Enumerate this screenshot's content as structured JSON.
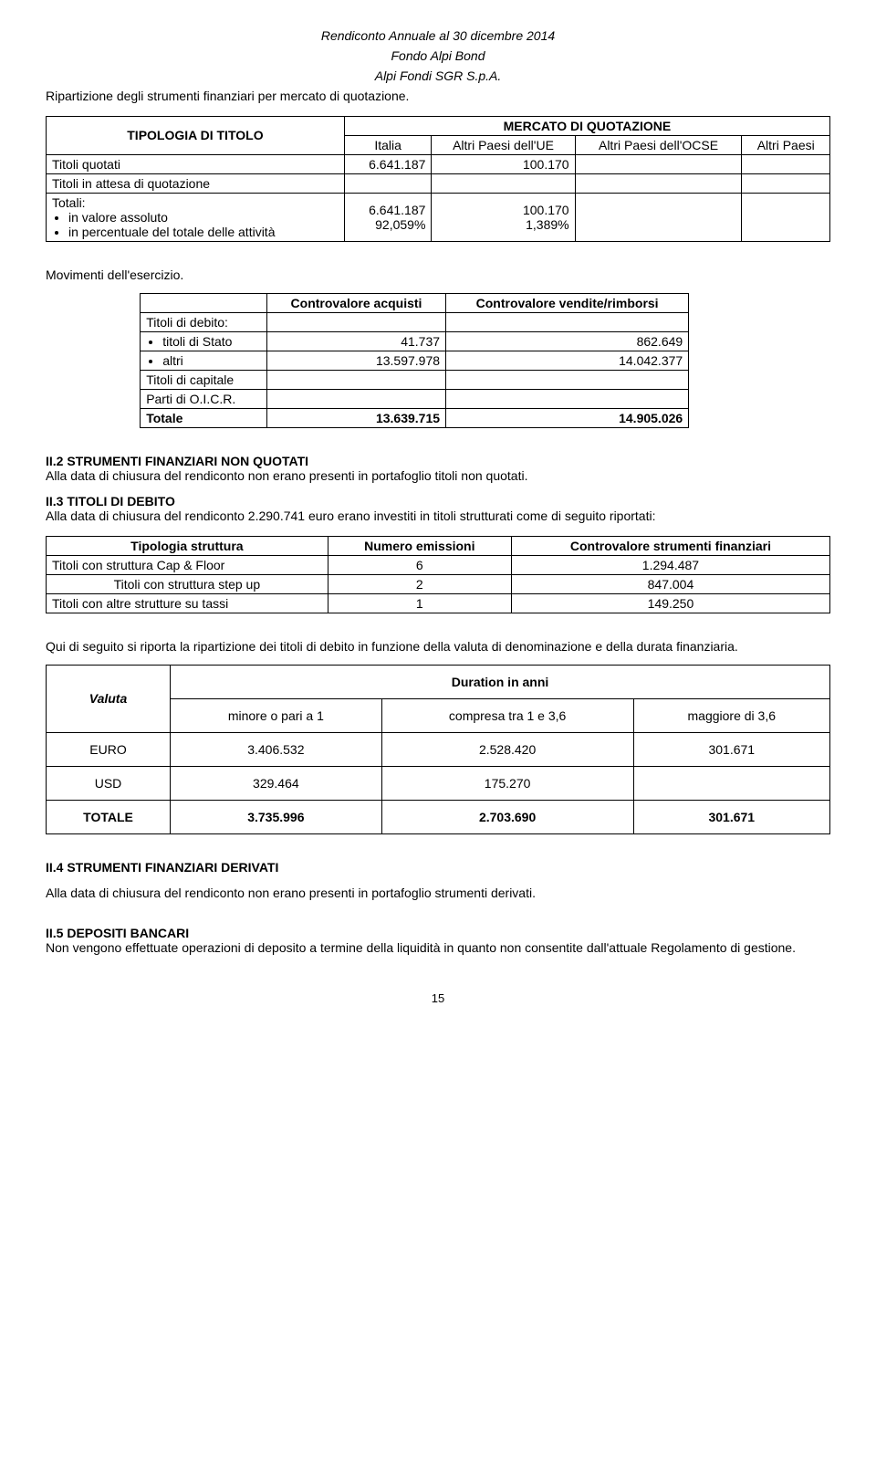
{
  "header": {
    "line1": "Rendiconto Annuale al 30 dicembre 2014",
    "line2": "Fondo Alpi Bond",
    "line3": "Alpi Fondi SGR S.p.A."
  },
  "intro": "Ripartizione degli strumenti finanziari per mercato di quotazione.",
  "tbl_mercato": {
    "title_col": "TIPOLOGIA DI TITOLO",
    "title_span": "MERCATO DI QUOTAZIONE",
    "cols": [
      "Italia",
      "Altri Paesi dell'UE",
      "Altri Paesi dell'OCSE",
      "Altri Paesi"
    ],
    "row_quotati": {
      "label": "Titoli quotati",
      "v": [
        "6.641.187",
        "100.170",
        "",
        ""
      ]
    },
    "row_attesa": {
      "label": "Titoli in attesa di quotazione",
      "v": [
        "",
        "",
        "",
        ""
      ]
    },
    "row_totali_label": "Totali:",
    "row_totali_bullets": [
      "in valore assoluto",
      "in percentuale del totale delle attività"
    ],
    "row_totali_v1": [
      "6.641.187",
      "100.170",
      "",
      ""
    ],
    "row_totali_v2": [
      "92,059%",
      "1,389%",
      "",
      ""
    ]
  },
  "movimenti_label": "Movimenti dell'esercizio.",
  "tbl_movimenti": {
    "col_acq": "Controvalore acquisti",
    "col_vend": "Controvalore vendite/rimborsi",
    "debito_label": "Titoli di debito:",
    "stato": {
      "label": "titoli di Stato",
      "acq": "41.737",
      "vend": "862.649"
    },
    "altri": {
      "label": "altri",
      "acq": "13.597.978",
      "vend": "14.042.377"
    },
    "capitale": "Titoli di capitale",
    "oicr": "Parti di O.I.C.R.",
    "totale": {
      "label": "Totale",
      "acq": "13.639.715",
      "vend": "14.905.026"
    }
  },
  "sec2": {
    "title": "II.2 STRUMENTI FINANZIARI NON QUOTATI",
    "text": "Alla data di chiusura del rendiconto non erano presenti in portafoglio titoli non quotati."
  },
  "sec3": {
    "title": "II.3 TITOLI DI DEBITO",
    "text": "Alla data di chiusura del rendiconto 2.290.741 euro erano investiti in titoli strutturati come di seguito riportati:"
  },
  "tbl_tipologia": {
    "cols": [
      "Tipologia struttura",
      "Numero emissioni",
      "Controvalore strumenti finanziari"
    ],
    "rows": [
      [
        "Titoli con struttura Cap & Floor",
        "6",
        "1.294.487"
      ],
      [
        "Titoli con struttura step up",
        "2",
        "847.004"
      ],
      [
        "Titoli con altre strutture su tassi",
        "1",
        "149.250"
      ]
    ]
  },
  "duration_intro": "Qui di seguito si riporta la ripartizione dei titoli di debito in funzione della valuta di denominazione e della durata finanziaria.",
  "tbl_duration": {
    "valuta_label": "Valuta",
    "duration_label": "Duration in anni",
    "cols": [
      "minore o pari a 1",
      "compresa tra 1 e 3,6",
      "maggiore di 3,6"
    ],
    "rows": [
      [
        "EURO",
        "3.406.532",
        "2.528.420",
        "301.671"
      ],
      [
        "USD",
        "329.464",
        "175.270",
        ""
      ]
    ],
    "totale": [
      "TOTALE",
      "3.735.996",
      "2.703.690",
      "301.671"
    ]
  },
  "sec4": {
    "title": "II.4 STRUMENTI FINANZIARI DERIVATI",
    "text": "Alla data di chiusura del rendiconto non erano presenti in portafoglio strumenti derivati."
  },
  "sec5": {
    "title": "II.5 DEPOSITI BANCARI",
    "text": "Non vengono effettuate operazioni di deposito a termine della liquidità in quanto non consentite dall'attuale Regolamento di gestione."
  },
  "page_num": "15"
}
